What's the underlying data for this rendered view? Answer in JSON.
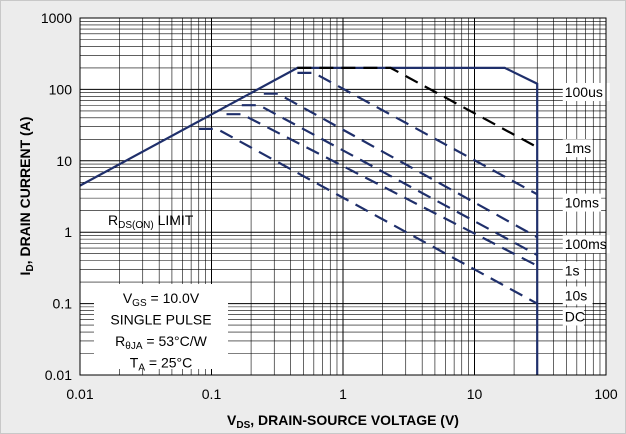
{
  "chart_data": {
    "type": "line",
    "xscale": "log",
    "yscale": "log",
    "xlim": [
      0.01,
      100
    ],
    "ylim": [
      0.01,
      1000
    ],
    "grid": true,
    "x_ticks": [
      "0.01",
      "0.1",
      "1",
      "10",
      "100"
    ],
    "y_ticks": [
      "1000",
      "100",
      "10",
      "1",
      "0.1",
      "0.01"
    ],
    "xlabel": {
      "main": "V",
      "sub": "DS",
      "rest": ", DRAIN-SOURCE VOLTAGE (V)"
    },
    "ylabel": {
      "main": "I",
      "sub": "D",
      "rest": ", DRAIN CURRENT (A)"
    },
    "boundary": {
      "x": [
        0.01,
        0.45,
        17.0,
        30.0,
        30.0
      ],
      "y": [
        4.5,
        200,
        200,
        120,
        0.01
      ]
    },
    "series": [
      {
        "name": "100us",
        "label_at": [
          38,
          92
        ],
        "x": [
          0.45,
          2.3,
          30
        ],
        "y": [
          200,
          200,
          15.5
        ]
      },
      {
        "name": "1ms",
        "label_at": [
          38,
          15
        ],
        "x": [
          0.45,
          0.6,
          30
        ],
        "y": [
          170,
          170,
          3.4
        ]
      },
      {
        "name": "10ms",
        "label_at": [
          38,
          2.6
        ],
        "x": [
          0.25,
          0.32,
          30
        ],
        "y": [
          87,
          87,
          0.85
        ]
      },
      {
        "name": "100ms",
        "label_at": [
          38,
          0.68
        ],
        "x": [
          0.17,
          0.23,
          30
        ],
        "y": [
          60,
          60,
          0.48
        ]
      },
      {
        "name": "1s",
        "label_at": [
          38,
          0.29
        ],
        "x": [
          0.13,
          0.17,
          30
        ],
        "y": [
          45,
          45,
          0.34
        ]
      },
      {
        "name": "10s",
        "label_at": [
          38,
          0.13
        ],
        "x": [
          0.08,
          0.11,
          30
        ],
        "y": [
          28,
          28,
          0.1
        ]
      },
      {
        "name": "DC",
        "label_at": [
          38,
          0.066
        ],
        "x": [],
        "y": []
      }
    ],
    "annotations": {
      "rds_limit": {
        "main": "R",
        "sub": "DS(ON)",
        "rest": " LIMIT"
      },
      "conditions": [
        {
          "main": "V",
          "sub": "GS",
          "rest": " = 10.0V"
        },
        {
          "main": "SINGLE PULSE",
          "sub": "",
          "rest": ""
        },
        {
          "main": "R",
          "sub": "θJA",
          "rest": " = 53°C/W"
        },
        {
          "main": "T",
          "sub": "A",
          "rest": " = 25°C"
        }
      ]
    },
    "colors": {
      "limit": "#1f2f6b",
      "pulse_100us": "#000000",
      "pulse": "#1f2f6b",
      "grid": "#000000",
      "plot_bg": "#ffffff"
    }
  }
}
